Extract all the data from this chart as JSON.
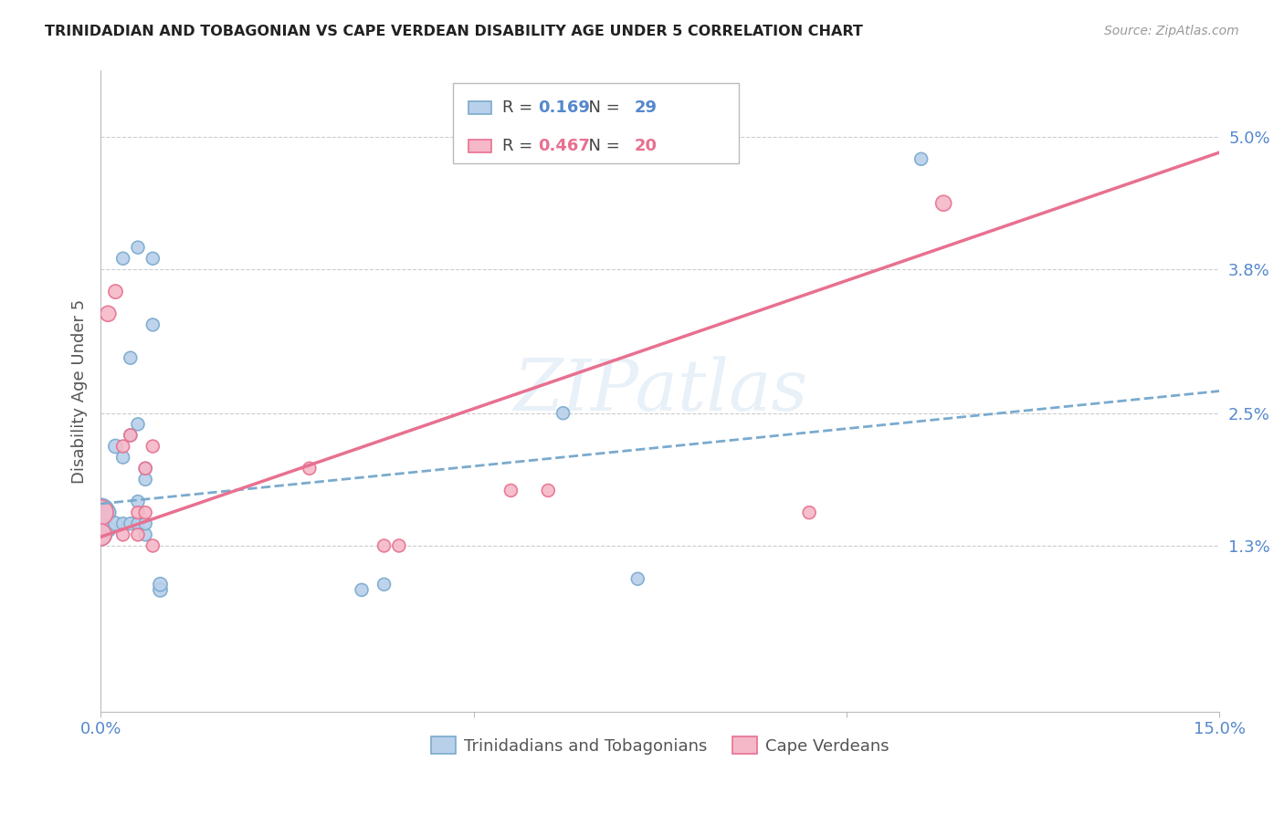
{
  "title": "TRINIDADIAN AND TOBAGONIAN VS CAPE VERDEAN DISABILITY AGE UNDER 5 CORRELATION CHART",
  "source": "Source: ZipAtlas.com",
  "ylabel": "Disability Age Under 5",
  "xlim": [
    0.0,
    0.15
  ],
  "ylim": [
    -0.002,
    0.056
  ],
  "ytick_positions": [
    0.013,
    0.025,
    0.038,
    0.05
  ],
  "ytick_labels": [
    "1.3%",
    "2.5%",
    "3.8%",
    "5.0%"
  ],
  "blue_color": "#b8d0ea",
  "blue_edge_color": "#7aaace",
  "pink_color": "#f5b8c8",
  "pink_edge_color": "#e87090",
  "R_blue": "0.169",
  "N_blue": "29",
  "R_pink": "0.467",
  "N_pink": "20",
  "blue_intercept": 0.0168,
  "blue_slope": 0.068,
  "pink_intercept": 0.0138,
  "pink_slope": 0.232,
  "blue_scatter_x": [
    0.0,
    0.0,
    0.001,
    0.001,
    0.002,
    0.002,
    0.003,
    0.003,
    0.003,
    0.004,
    0.004,
    0.004,
    0.005,
    0.005,
    0.005,
    0.005,
    0.006,
    0.006,
    0.006,
    0.006,
    0.007,
    0.007,
    0.008,
    0.008,
    0.035,
    0.038,
    0.062,
    0.072,
    0.11
  ],
  "blue_scatter_y": [
    0.016,
    0.014,
    0.0145,
    0.016,
    0.015,
    0.022,
    0.015,
    0.021,
    0.039,
    0.015,
    0.023,
    0.03,
    0.015,
    0.017,
    0.024,
    0.04,
    0.014,
    0.015,
    0.019,
    0.02,
    0.033,
    0.039,
    0.009,
    0.0095,
    0.009,
    0.0095,
    0.025,
    0.01,
    0.048
  ],
  "blue_scatter_sizes": [
    500,
    300,
    150,
    150,
    120,
    120,
    100,
    100,
    100,
    100,
    100,
    100,
    100,
    100,
    100,
    100,
    100,
    100,
    100,
    100,
    100,
    100,
    120,
    120,
    100,
    100,
    100,
    100,
    100
  ],
  "pink_scatter_x": [
    0.0,
    0.0,
    0.001,
    0.002,
    0.003,
    0.003,
    0.004,
    0.005,
    0.005,
    0.006,
    0.006,
    0.007,
    0.007,
    0.028,
    0.038,
    0.04,
    0.055,
    0.06,
    0.095,
    0.113
  ],
  "pink_scatter_y": [
    0.016,
    0.014,
    0.034,
    0.036,
    0.014,
    0.022,
    0.023,
    0.014,
    0.016,
    0.016,
    0.02,
    0.013,
    0.022,
    0.02,
    0.013,
    0.013,
    0.018,
    0.018,
    0.016,
    0.044
  ],
  "pink_scatter_sizes": [
    400,
    300,
    150,
    120,
    100,
    100,
    100,
    100,
    100,
    100,
    100,
    100,
    100,
    100,
    100,
    100,
    100,
    100,
    100,
    150
  ],
  "watermark": "ZIPatlas",
  "legend_label_blue": "Trinidadians and Tobagonians",
  "legend_label_pink": "Cape Verdeans",
  "background_color": "#ffffff",
  "grid_color": "#cccccc",
  "axis_color": "#bbbbbb",
  "title_color": "#222222",
  "source_color": "#999999",
  "ylabel_color": "#555555",
  "tick_label_color": "#5588cc",
  "bottom_legend_color": "#555555",
  "legend_blue_value_color": "#5588cc",
  "legend_pink_value_color": "#e87090"
}
